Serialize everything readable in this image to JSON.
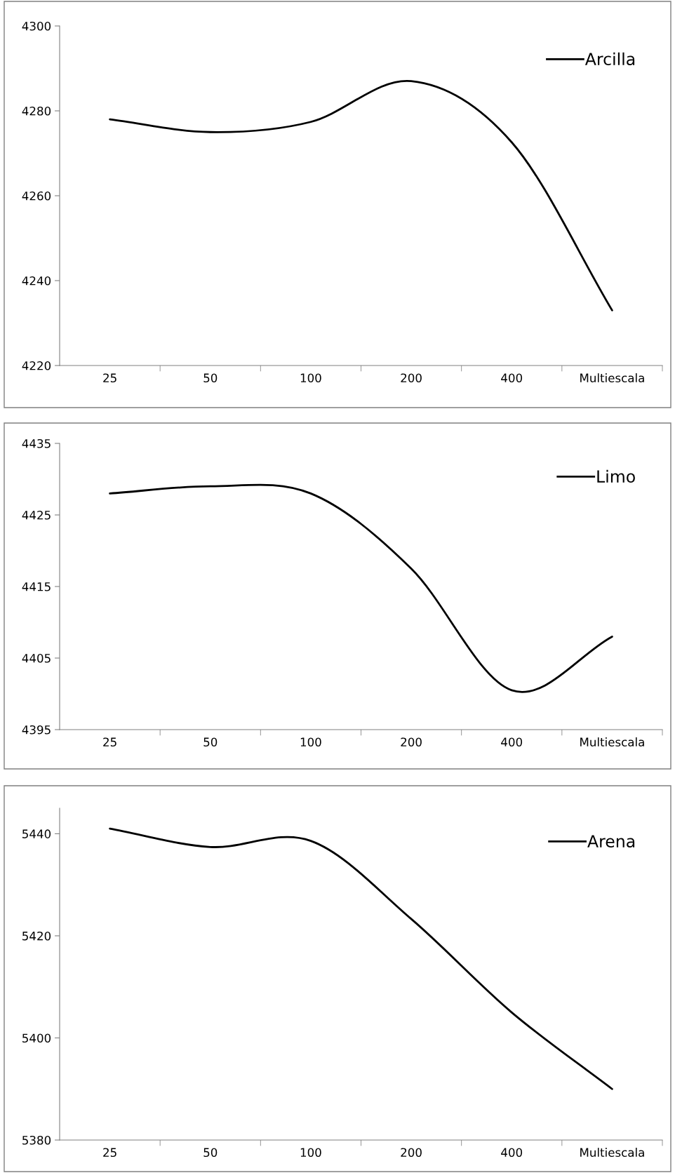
{
  "chart_data": [
    {
      "type": "line",
      "categories": [
        "25",
        "50",
        "100",
        "200",
        "400",
        "Multiescala"
      ],
      "series": [
        {
          "name": "Arcilla",
          "color": "#000000",
          "values": [
            4278,
            4275,
            4277.4,
            4287,
            4272.6,
            4233
          ]
        }
      ],
      "ylim": [
        4220,
        4300
      ],
      "yticks": [
        4220,
        4240,
        4260,
        4280,
        4300
      ],
      "legend": "top right",
      "grid": false,
      "line_style": "solid",
      "marker": "none"
    },
    {
      "type": "line",
      "categories": [
        "25",
        "50",
        "100",
        "200",
        "400",
        "Multiescala"
      ],
      "series": [
        {
          "name": "Limo",
          "color": "#000000",
          "values": [
            4428,
            4429,
            4428,
            4417.5,
            4400.5,
            4408
          ]
        }
      ],
      "ylim": [
        4395,
        4435
      ],
      "yticks": [
        4395,
        4405,
        4415,
        4425,
        4435
      ],
      "legend": "top right",
      "grid": false,
      "line_style": "solid",
      "marker": "none"
    },
    {
      "type": "line",
      "categories": [
        "25",
        "50",
        "100",
        "200",
        "400",
        "Multiescala"
      ],
      "series": [
        {
          "name": "Arena",
          "color": "#000000",
          "values": [
            5441,
            5437.4,
            5438.6,
            5423.3,
            5405,
            5390
          ]
        }
      ],
      "ylim": [
        5380,
        5445
      ],
      "yticks": [
        5380,
        5400,
        5420,
        5440
      ],
      "legend": "top right",
      "grid": false,
      "line_style": "solid",
      "marker": "none"
    }
  ]
}
